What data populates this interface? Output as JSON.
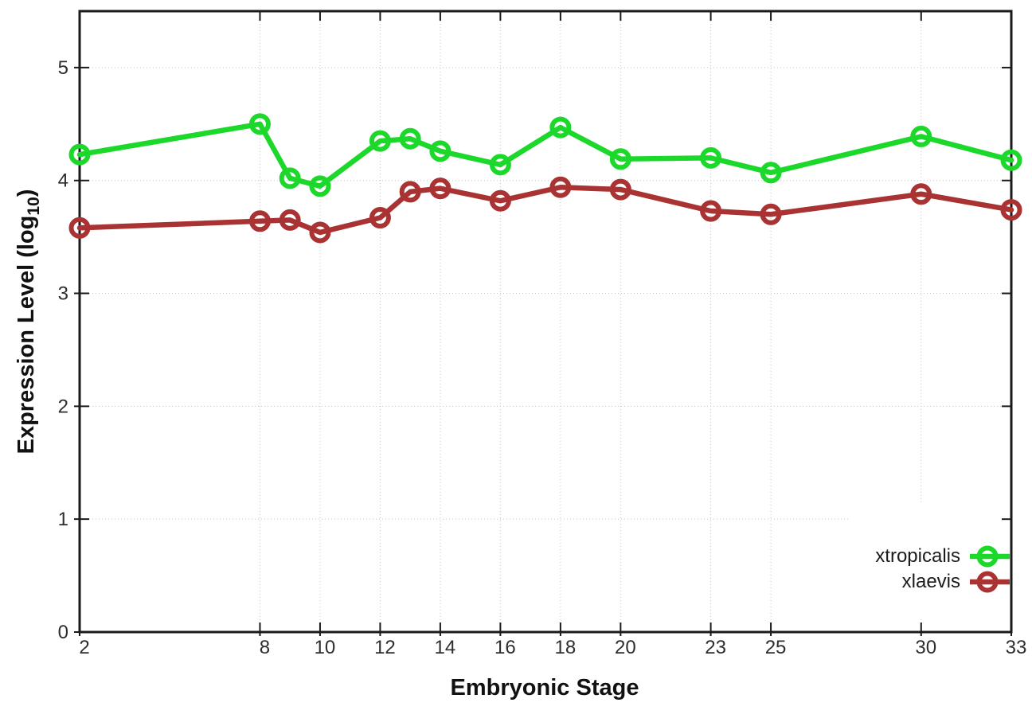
{
  "chart_data": {
    "type": "line",
    "title": "",
    "xlabel": "Embryonic Stage",
    "ylabel": "Expression Level (log10)",
    "ylabel_parts": {
      "prefix": "Expression Level (log",
      "sub": "10",
      "suffix": ")"
    },
    "x": [
      2,
      8,
      9,
      10,
      12,
      13,
      14,
      16,
      18,
      20,
      23,
      25,
      30,
      33
    ],
    "x_ticks": [
      "2",
      "8",
      "10",
      "12",
      "14",
      "16",
      "18",
      "20",
      "23",
      "25",
      "30",
      "33"
    ],
    "x_tick_values": [
      2,
      8,
      10,
      12,
      14,
      16,
      18,
      20,
      23,
      25,
      30,
      33
    ],
    "y_ticks": [
      "0",
      "1",
      "2",
      "3",
      "4",
      "5"
    ],
    "y_tick_values": [
      0,
      1,
      2,
      3,
      4,
      5
    ],
    "xlim": [
      2,
      33
    ],
    "ylim": [
      0,
      5.5
    ],
    "grid": true,
    "legend_position": "bottom-right",
    "series": [
      {
        "name": "xtropicalis",
        "color": "#1bd82b",
        "marker": "open-circle",
        "values": [
          4.23,
          4.5,
          4.02,
          3.95,
          4.35,
          4.37,
          4.26,
          4.14,
          4.47,
          4.19,
          4.2,
          4.07,
          4.39,
          4.18
        ]
      },
      {
        "name": "xlaevis",
        "color": "#a93232",
        "marker": "open-circle",
        "values": [
          3.58,
          3.64,
          3.65,
          3.54,
          3.67,
          3.9,
          3.93,
          3.82,
          3.94,
          3.92,
          3.73,
          3.7,
          3.88,
          3.74
        ]
      }
    ]
  }
}
